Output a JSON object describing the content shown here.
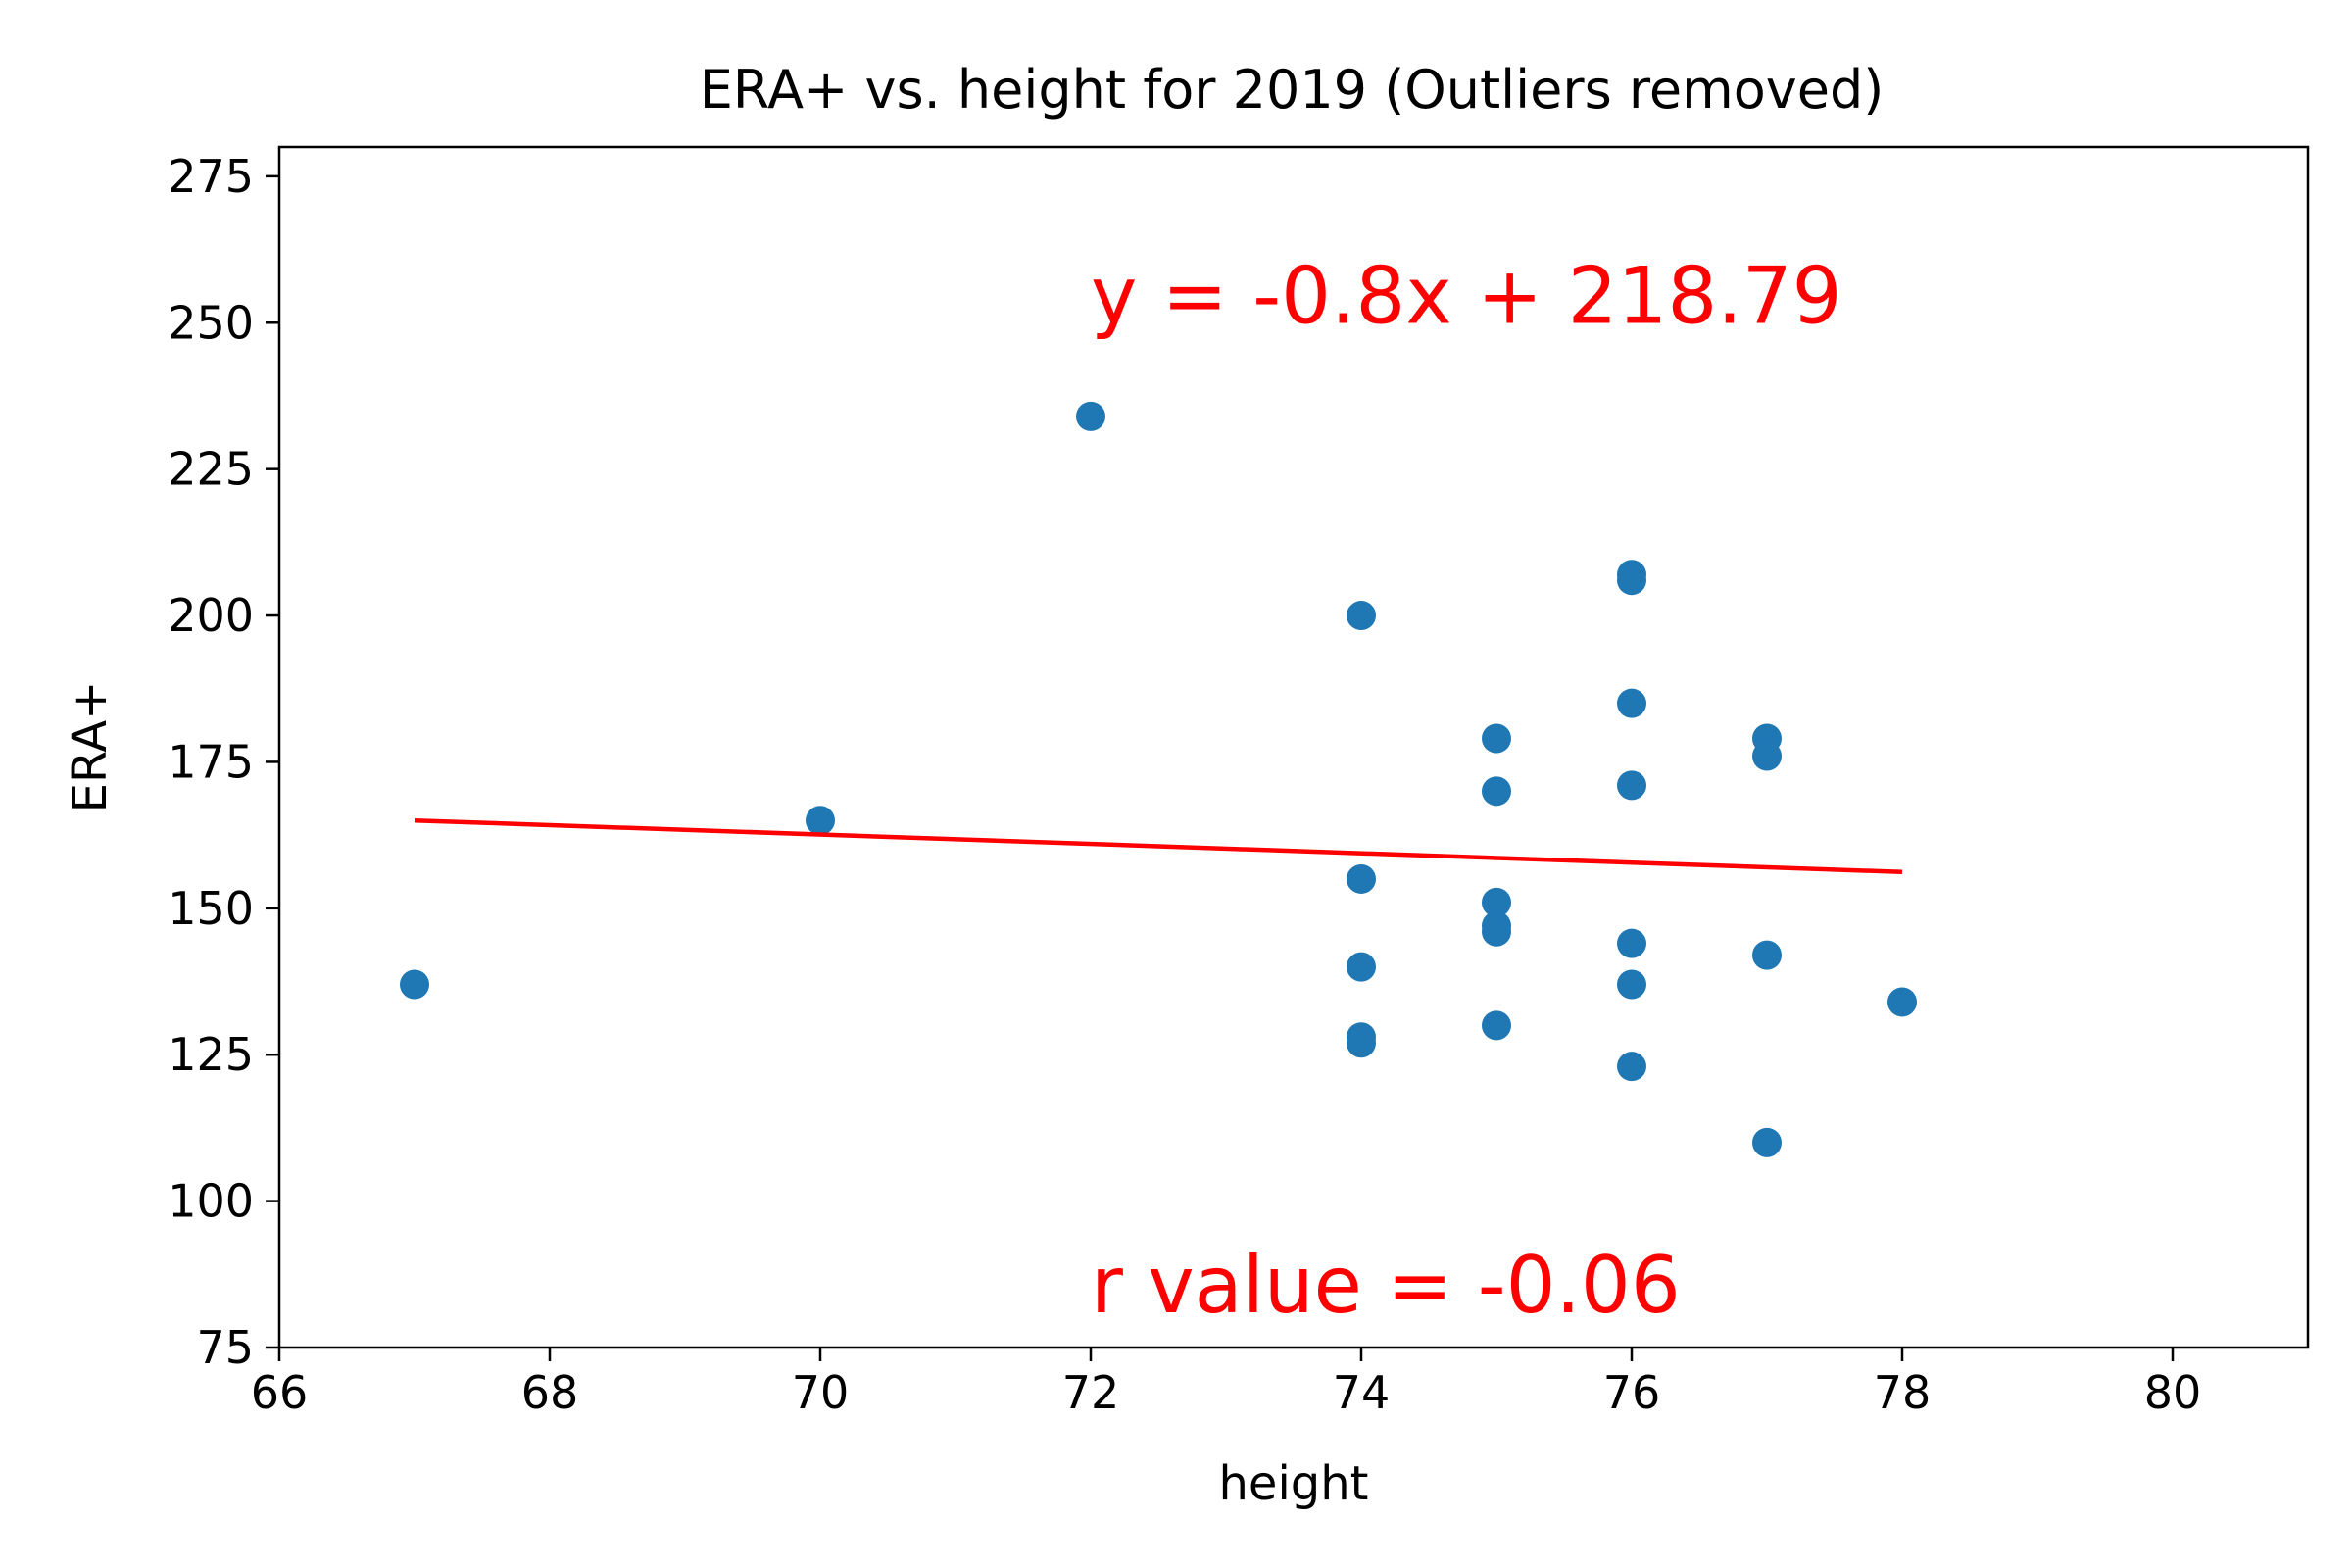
{
  "chart_data": {
    "type": "scatter",
    "title": "ERA+ vs. height for 2019 (Outliers removed)",
    "xlabel": "height",
    "ylabel": "ERA+",
    "xlim": [
      66,
      81
    ],
    "ylim": [
      75,
      280
    ],
    "x_ticks": [
      66,
      68,
      70,
      72,
      74,
      76,
      78,
      80
    ],
    "y_ticks": [
      75,
      100,
      125,
      150,
      175,
      200,
      225,
      250,
      275
    ],
    "grid": false,
    "series": [
      {
        "type": "scatter",
        "color": "#1f77b4",
        "points": [
          {
            "x": 67,
            "y": 137
          },
          {
            "x": 70,
            "y": 165
          },
          {
            "x": 72,
            "y": 234
          },
          {
            "x": 74,
            "y": 200
          },
          {
            "x": 74,
            "y": 155
          },
          {
            "x": 74,
            "y": 140
          },
          {
            "x": 74,
            "y": 128
          },
          {
            "x": 74,
            "y": 127
          },
          {
            "x": 75,
            "y": 179
          },
          {
            "x": 75,
            "y": 170
          },
          {
            "x": 75,
            "y": 151
          },
          {
            "x": 75,
            "y": 147
          },
          {
            "x": 75,
            "y": 146
          },
          {
            "x": 75,
            "y": 130
          },
          {
            "x": 76,
            "y": 207
          },
          {
            "x": 76,
            "y": 206
          },
          {
            "x": 76,
            "y": 185
          },
          {
            "x": 76,
            "y": 171
          },
          {
            "x": 76,
            "y": 144
          },
          {
            "x": 76,
            "y": 137
          },
          {
            "x": 76,
            "y": 123
          },
          {
            "x": 77,
            "y": 179
          },
          {
            "x": 77,
            "y": 176
          },
          {
            "x": 77,
            "y": 142
          },
          {
            "x": 77,
            "y": 110
          },
          {
            "x": 78,
            "y": 134
          }
        ]
      },
      {
        "type": "line",
        "color": "#ff0000",
        "points": [
          {
            "x": 67,
            "y": 165.0
          },
          {
            "x": 78,
            "y": 156.2
          }
        ]
      }
    ],
    "annotations": [
      {
        "text": "y = -0.8x + 218.79",
        "x": 72,
        "y": 250,
        "color": "#ff0000"
      },
      {
        "text": "r value = -0.06",
        "x": 72,
        "y": 81,
        "color": "#ff0000"
      }
    ]
  }
}
